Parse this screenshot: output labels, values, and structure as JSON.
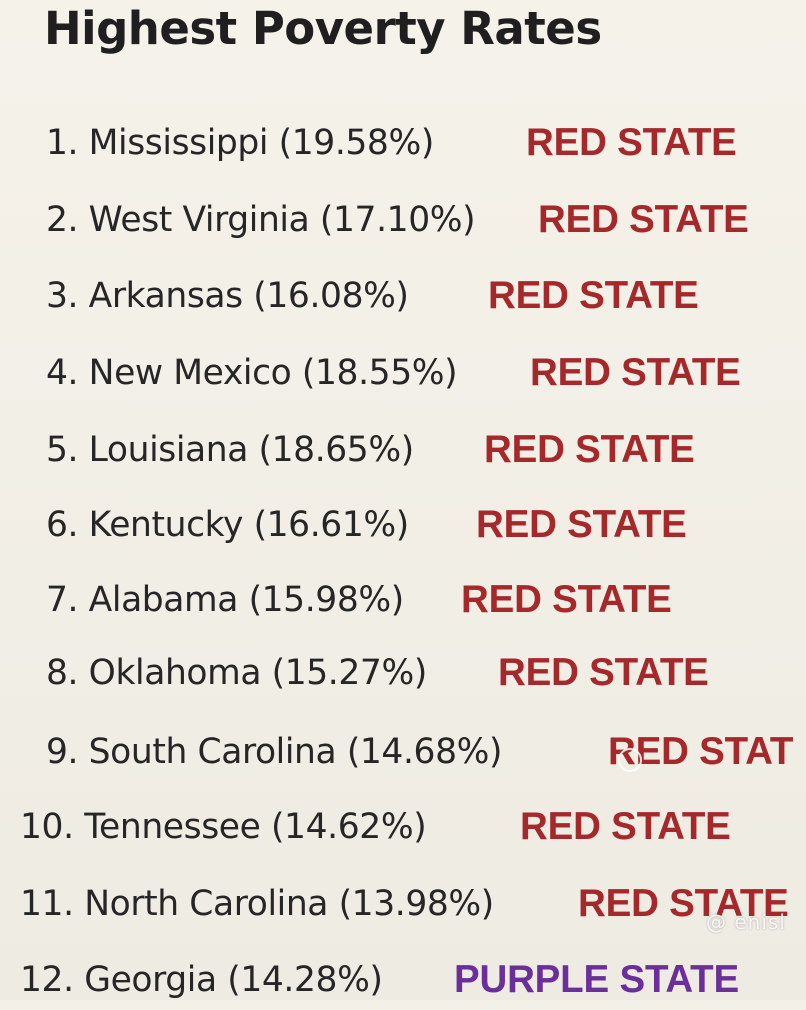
{
  "title": "Highest Poverty Rates",
  "rows": [
    {
      "text": "1. Mississippi (19.58%)",
      "tag": "RED STATE",
      "tag_color": "#a5282a"
    },
    {
      "text": "2. West Virginia (17.10%)",
      "tag": "RED STATE",
      "tag_color": "#a5282a"
    },
    {
      "text": "3. Arkansas (16.08%)",
      "tag": "RED STATE",
      "tag_color": "#a5282a"
    },
    {
      "text": "4. New Mexico (18.55%)",
      "tag": "RED STATE",
      "tag_color": "#a5282a"
    },
    {
      "text": "5. Louisiana (18.65%)",
      "tag": "RED STATE",
      "tag_color": "#a5282a"
    },
    {
      "text": "6. Kentucky (16.61%)",
      "tag": "RED STATE",
      "tag_color": "#a5282a"
    },
    {
      "text": "7. Alabama (15.98%)",
      "tag": "RED STATE",
      "tag_color": "#a5282a"
    },
    {
      "text": "8. Oklahoma (15.27%)",
      "tag": "RED STATE",
      "tag_color": "#a5282a"
    },
    {
      "text": "9. South Carolina (14.68%)",
      "tag": "RED STAT",
      "tag_color": "#a5282a"
    },
    {
      "text": "10. Tennessee (14.62%)",
      "tag": "RED STATE",
      "tag_color": "#a5282a"
    },
    {
      "text": "11. North Carolina (13.98%)",
      "tag": "RED STATE",
      "tag_color": "#a5282a"
    },
    {
      "text": "12. Georgia (14.28%)",
      "tag": "PURPLE STATE",
      "tag_color": "#6a2f9a"
    }
  ],
  "watermark": "@ enisl"
}
